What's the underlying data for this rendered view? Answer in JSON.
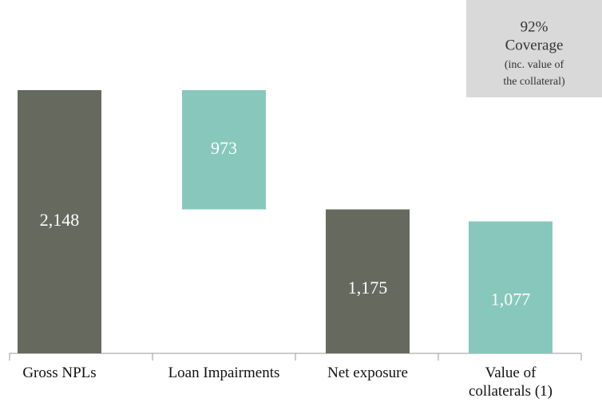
{
  "chart_data": {
    "type": "waterfall",
    "categories": [
      "Gross NPLs",
      "Loan Impairments",
      "Net exposure",
      "Value of collaterals (1)"
    ],
    "values": [
      2148,
      973,
      1175,
      1077
    ],
    "value_labels": [
      "2,148",
      "973",
      "1,175",
      "1,077"
    ],
    "measures": [
      "total",
      "decrease",
      "total",
      "total"
    ],
    "colors": [
      "#666a5e",
      "#88c8bc",
      "#666a5e",
      "#88c8bc"
    ],
    "annotation": [
      "92%",
      "Coverage",
      "(inc. value of",
      "the collateral)"
    ]
  }
}
